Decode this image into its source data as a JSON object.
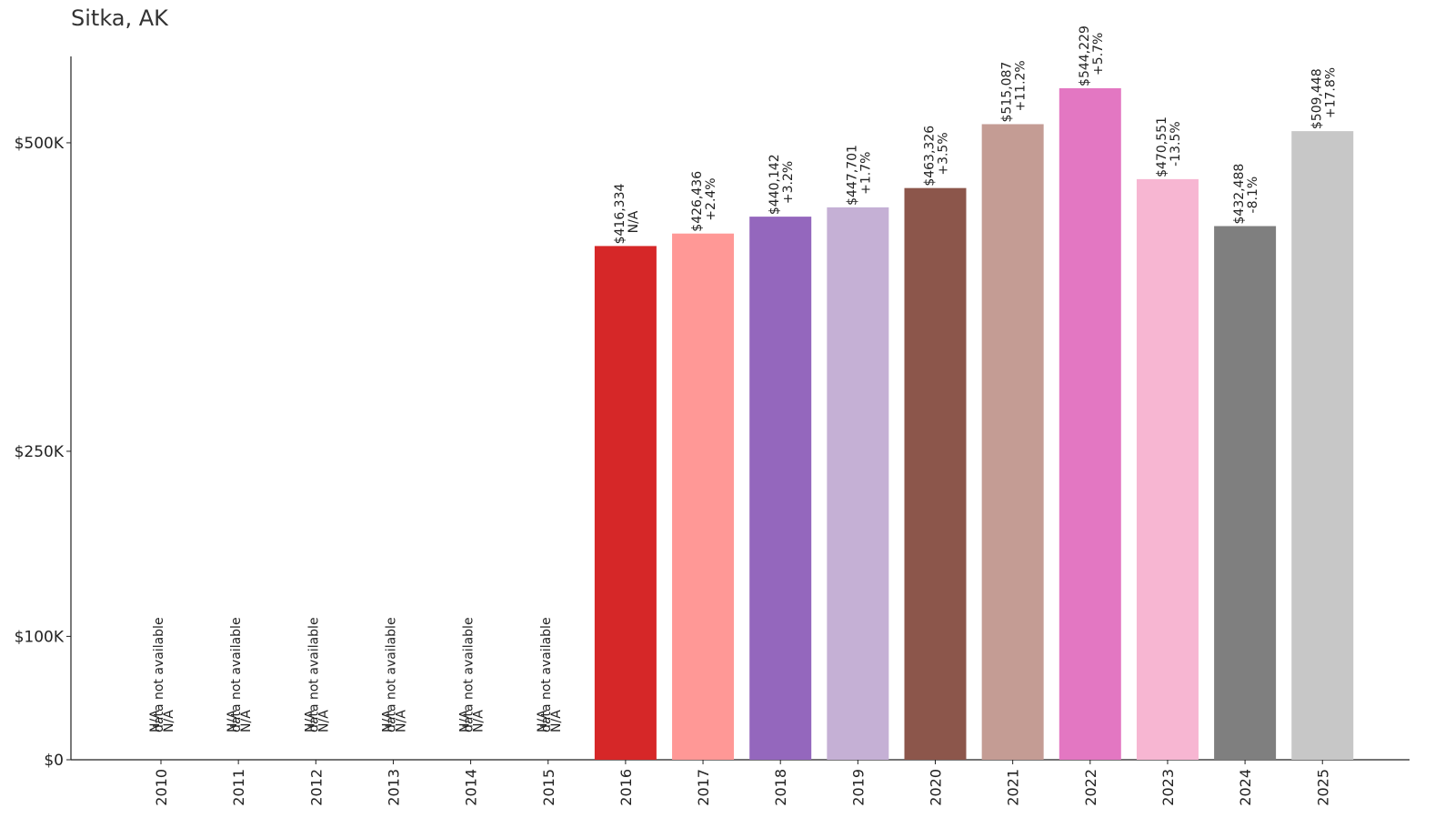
{
  "chart_data": {
    "type": "bar",
    "title": "Sitka, AK",
    "xlabel": "",
    "ylabel": "",
    "categories": [
      "2010",
      "2011",
      "2012",
      "2013",
      "2014",
      "2015",
      "2016",
      "2017",
      "2018",
      "2019",
      "2020",
      "2021",
      "2022",
      "2023",
      "2024",
      "2025"
    ],
    "values": [
      null,
      null,
      null,
      null,
      null,
      null,
      416334,
      426436,
      440142,
      447701,
      463326,
      515087,
      544229,
      470551,
      432488,
      509448
    ],
    "value_labels": [
      "N/A",
      "N/A",
      "N/A",
      "N/A",
      "N/A",
      "N/A",
      "$416,334",
      "$426,436",
      "$440,142",
      "$447,701",
      "$463,326",
      "$515,087",
      "$544,229",
      "$470,551",
      "$432,488",
      "$509,448"
    ],
    "change_labels": [
      "N/A",
      "N/A",
      "N/A",
      "N/A",
      "N/A",
      "N/A",
      "N/A",
      "+2.4%",
      "+3.2%",
      "+1.7%",
      "+3.5%",
      "+11.2%",
      "+5.7%",
      "-13.5%",
      "-8.1%",
      "+17.8%"
    ],
    "missing_note": "data not available",
    "colors": [
      "#1f77b4",
      "#aec7e8",
      "#ff7f0e",
      "#ffbb78",
      "#2ca02c",
      "#98df8a",
      "#d62728",
      "#ff9896",
      "#9467bd",
      "#c5b0d5",
      "#8c564b",
      "#c49c94",
      "#e377c2",
      "#f7b6d2",
      "#7f7f7f",
      "#c7c7c7"
    ],
    "yticks": [
      0,
      100000,
      250000,
      500000
    ],
    "ytick_labels": [
      "$0",
      "$100K",
      "$250K",
      "$500K"
    ],
    "ylim": [
      0,
      570000
    ],
    "grid": false,
    "legend": "none"
  }
}
